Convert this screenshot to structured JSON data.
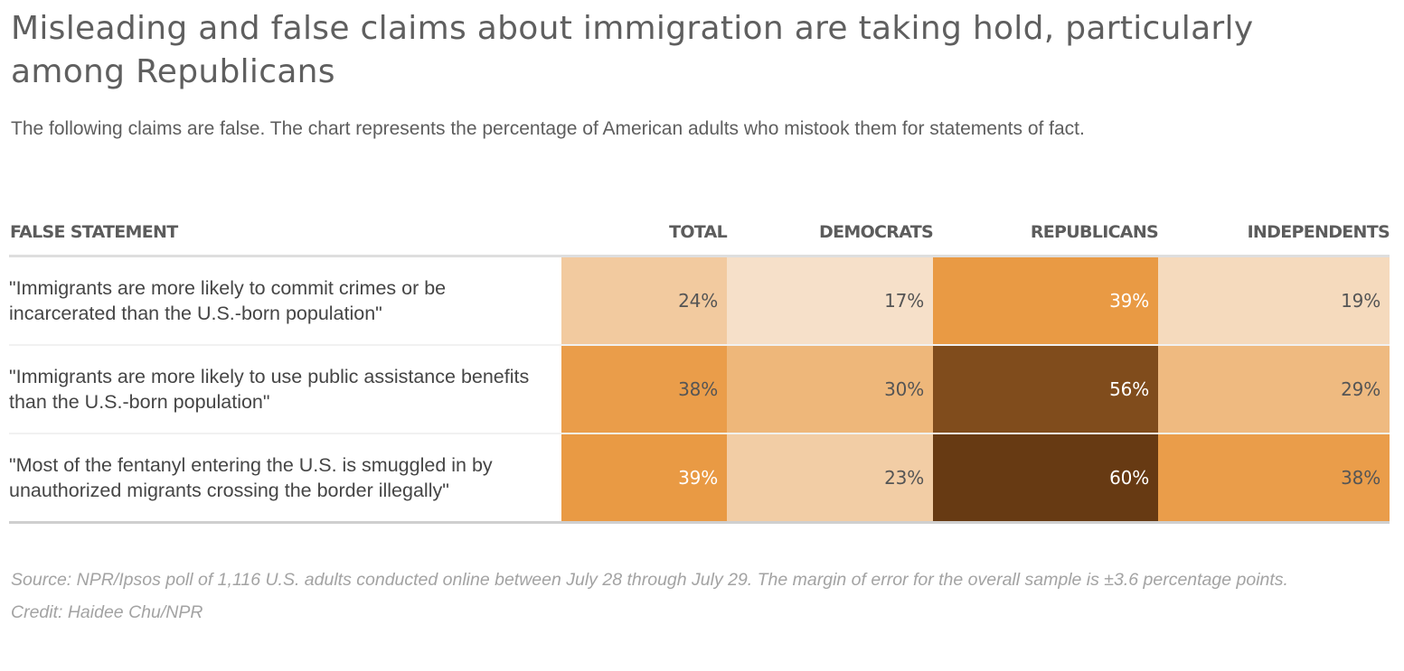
{
  "header": {
    "title": "Misleading and false claims about immigration are taking hold, particularly among Republicans",
    "subtitle": "The following claims are false. The chart represents the percentage of American adults who mistook them for statements of fact."
  },
  "chart_data": {
    "type": "heatmap",
    "title": "Misleading and false claims about immigration are taking hold, particularly among Republicans",
    "subtitle": "The following claims are false. The chart represents the percentage of American adults who mistook them for statements of fact.",
    "row_header": "FALSE STATEMENT",
    "columns": [
      "TOTAL",
      "DEMOCRATS",
      "REPUBLICANS",
      "INDEPENDENTS"
    ],
    "rows": [
      "\"Immigrants are more likely to commit crimes or be incarcerated than the U.S.-born population\"",
      "\"Immigrants are more likely to use public assistance benefits than the U.S.-born population\"",
      "\"Most of the fentanyl entering the U.S. is smuggled in by unauthorized migrants crossing the border illegally\""
    ],
    "values": [
      [
        24,
        17,
        39,
        19
      ],
      [
        38,
        30,
        56,
        29
      ],
      [
        39,
        23,
        60,
        38
      ]
    ],
    "value_suffix": "%",
    "colors": {
      "low": "#f6e0c9",
      "mid": "#e99a44",
      "high": "#673a13"
    }
  },
  "footer": {
    "source": "Source: NPR/Ipsos poll of 1,116 U.S. adults conducted online between July 28 through July 29. The margin of error for the overall sample is ±3.6 percentage points.",
    "credit": "Credit: Haidee Chu/NPR"
  }
}
